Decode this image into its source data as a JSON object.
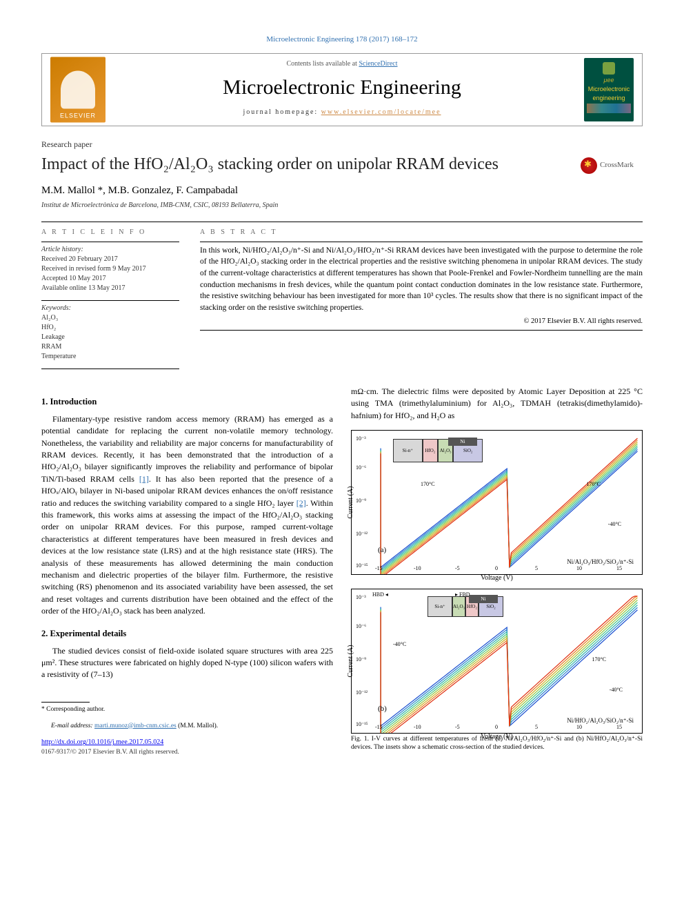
{
  "top_link": "Microelectronic Engineering 178 (2017) 168–172",
  "header": {
    "contents": "Contents lists available at ",
    "sd": "ScienceDirect",
    "journal": "Microelectronic Engineering",
    "homepage_label": "journal homepage: ",
    "homepage_url": "www.elsevier.com/locate/mee",
    "cover_line1": "μee",
    "cover_line2": "Microelectronic",
    "cover_line3": "engineering",
    "elsevier": "ELSEVIER"
  },
  "paper_type": "Research paper",
  "title": "Impact of the HfO₂/Al₂O₃ stacking order on unipolar RRAM devices",
  "crossmark": "CrossMark",
  "authors": "M.M. Mallol *, M.B. Gonzalez, F. Campabadal",
  "affil": "Institut de Microelectrònica de Barcelona, IMB-CNM, CSIC, 08193 Bellaterra, Spain",
  "article_info_heading": "A R T I C L E   I N F O",
  "abstract_heading": "A B S T R A C T",
  "history_title": "Article history:",
  "history": [
    "Received 20 February 2017",
    "Received in revised form 9 May 2017",
    "Accepted 10 May 2017",
    "Available online 13 May 2017"
  ],
  "keywords_title": "Keywords:",
  "keywords": [
    "Al₂O₃",
    "HfO₂",
    "Leakage",
    "RRAM",
    "Temperature"
  ],
  "abstract": "In this work, Ni/HfO₂/Al₂O₃/n⁺-Si and Ni/Al₂O₃/HfO₂/n⁺-Si RRAM devices have been investigated with the purpose to determine the role of the HfO₂/Al₂O₃ stacking order in the electrical properties and the resistive switching phenomena in unipolar RRAM devices. The study of the current-voltage characteristics at different temperatures has shown that Poole-Frenkel and Fowler-Nordheim tunnelling are the main conduction mechanisms in fresh devices, while the quantum point contact conduction dominates in the low resistance state. Furthermore, the resistive switching behaviour has been investigated for more than 10³ cycles. The results show that there is no significant impact of the stacking order on the resistive switching properties.",
  "copyright": "© 2017 Elsevier B.V. All rights reserved.",
  "sec1_title": "1. Introduction",
  "sec1_p1": "Filamentary-type resistive random access memory (RRAM) has emerged as a potential candidate for replacing the current non-volatile memory technology. Nonetheless, the variability and reliability are major concerns for manufacturability of RRAM devices. Recently, it has been demonstrated that the introduction of a HfO₂/Al₂O₃ bilayer significantly improves the reliability and performance of bipolar TiN/Ti-based RRAM cells ",
  "ref1": "[1]",
  "sec1_p1b": ". It has also been reported that the presence of a HfOₓ/AlOᵧ bilayer in Ni-based unipolar RRAM devices enhances the on/off resistance ratio and reduces the switching variability compared to a single HfO₂ layer ",
  "ref2": "[2]",
  "sec1_p1c": ". Within this framework, this works aims at assessing the impact of the HfO₂/Al₂O₃ stacking order on unipolar RRAM devices. For this purpose, ramped current-voltage characteristics at different temperatures have been measured in fresh devices and devices at the low resistance state (LRS) and at the high resistance state (HRS). The analysis of these measurements has allowed determining the main conduction mechanism and dielectric properties of the bilayer film. Furthermore, the resistive switching (RS) phenomenon and its associated variability have been assessed, the set and reset voltages and currents distribution have been obtained and the effect of the order of the HfO₂/Al₂O₃ stack has been analyzed.",
  "sec2_title": "2. Experimental details",
  "sec2_p1": "The studied devices consist of field-oxide isolated square structures with area 225 μm². These structures were fabricated on highly doped N-type (100) silicon wafers with a resistivity of (7–13)",
  "col2_p1": "mΩ·cm. The dielectric films were deposited by Atomic Layer Deposition at 225 °C using TMA (trimethylaluminium) for Al₂O₃, TDMAH (tetrakis(dimethylamido)-hafnium) for HfO₂, and H₂O as",
  "fig1": {
    "caption": "Fig. 1. I-V curves at different temperatures of fresh (a) Ni/Al₂O₃/HfO₂/n⁺-Si and (b) Ni/HfO₂/Al₂O₃/n⁺-Si devices. The insets show a schematic cross-section of the studied devices.",
    "ylabel": "Current (A)",
    "xlabel": "Voltage (V)",
    "panel_a": "(a)",
    "panel_b": "(b)",
    "dev_a": "Ni/Al₂O₃/HfO₂/SiO₂/n⁺-Si",
    "dev_b": "Ni/HfO₂/Al₂O₃/SiO₂/n⁺-Si",
    "ni": "Ni",
    "hbd": "HBD",
    "fbd": "FBD",
    "t170": "170°C",
    "t40": "-40°C",
    "layers_a": [
      "Si-n⁺",
      "HfO₂",
      "Al₂O₃",
      "SiO₂"
    ],
    "layers_b": [
      "Si-n⁺",
      "Al₂O₃",
      "HfO₂",
      "SiO₂"
    ],
    "layer_colors": [
      "#d8d8d8",
      "#efc8c8",
      "#c8dcb4",
      "#c8c8e4"
    ],
    "yticks": [
      "10⁻³",
      "10⁻⁶",
      "10⁻⁹",
      "10⁻¹²",
      "10⁻¹⁵"
    ],
    "xticks": [
      "-15",
      "-10",
      "-5",
      "0",
      "5",
      "10",
      "15"
    ],
    "curve_colors": [
      "#1a4fd0",
      "#2a80d0",
      "#2ab0b0",
      "#4ac880",
      "#90c840",
      "#d0b020",
      "#e87820",
      "#e03010"
    ],
    "background_color": "#ffffff",
    "axis_color": "#000000",
    "line_width": 1.2,
    "ylim_exp": [
      -15,
      -3
    ],
    "xlim": [
      -15,
      15
    ]
  },
  "footnote_star": "* Corresponding author.",
  "footnote_email_label": "E-mail address: ",
  "footnote_email": "marti.munoz@imb-cnm.csic.es",
  "footnote_email_suffix": " (M.M. Mallol).",
  "doi": "http://dx.doi.org/10.1016/j.mee.2017.05.024",
  "issn": "0167-9317/© 2017 Elsevier B.V. All rights reserved."
}
